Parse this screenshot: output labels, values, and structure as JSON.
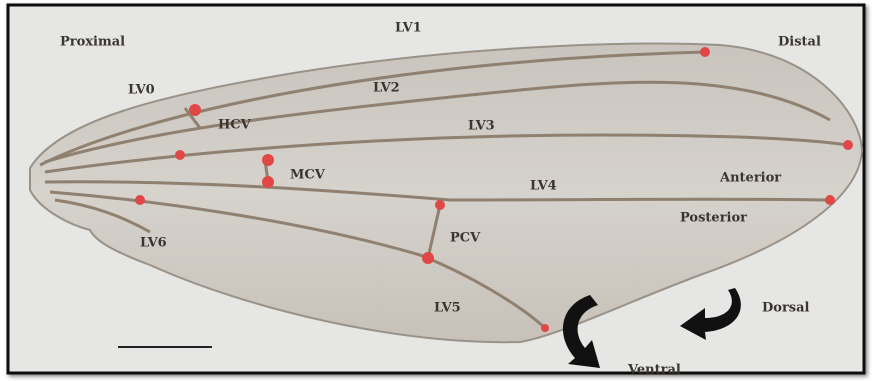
{
  "labels": [
    "Proximal",
    "LV1",
    "Distal",
    "LV0",
    "LV2",
    "HCV",
    "LV3",
    "MCV",
    "LV4",
    "Anterior",
    "Posterior",
    "PCV",
    "LV6",
    "LV5",
    "Dorsal",
    "Ventral"
  ]
}
